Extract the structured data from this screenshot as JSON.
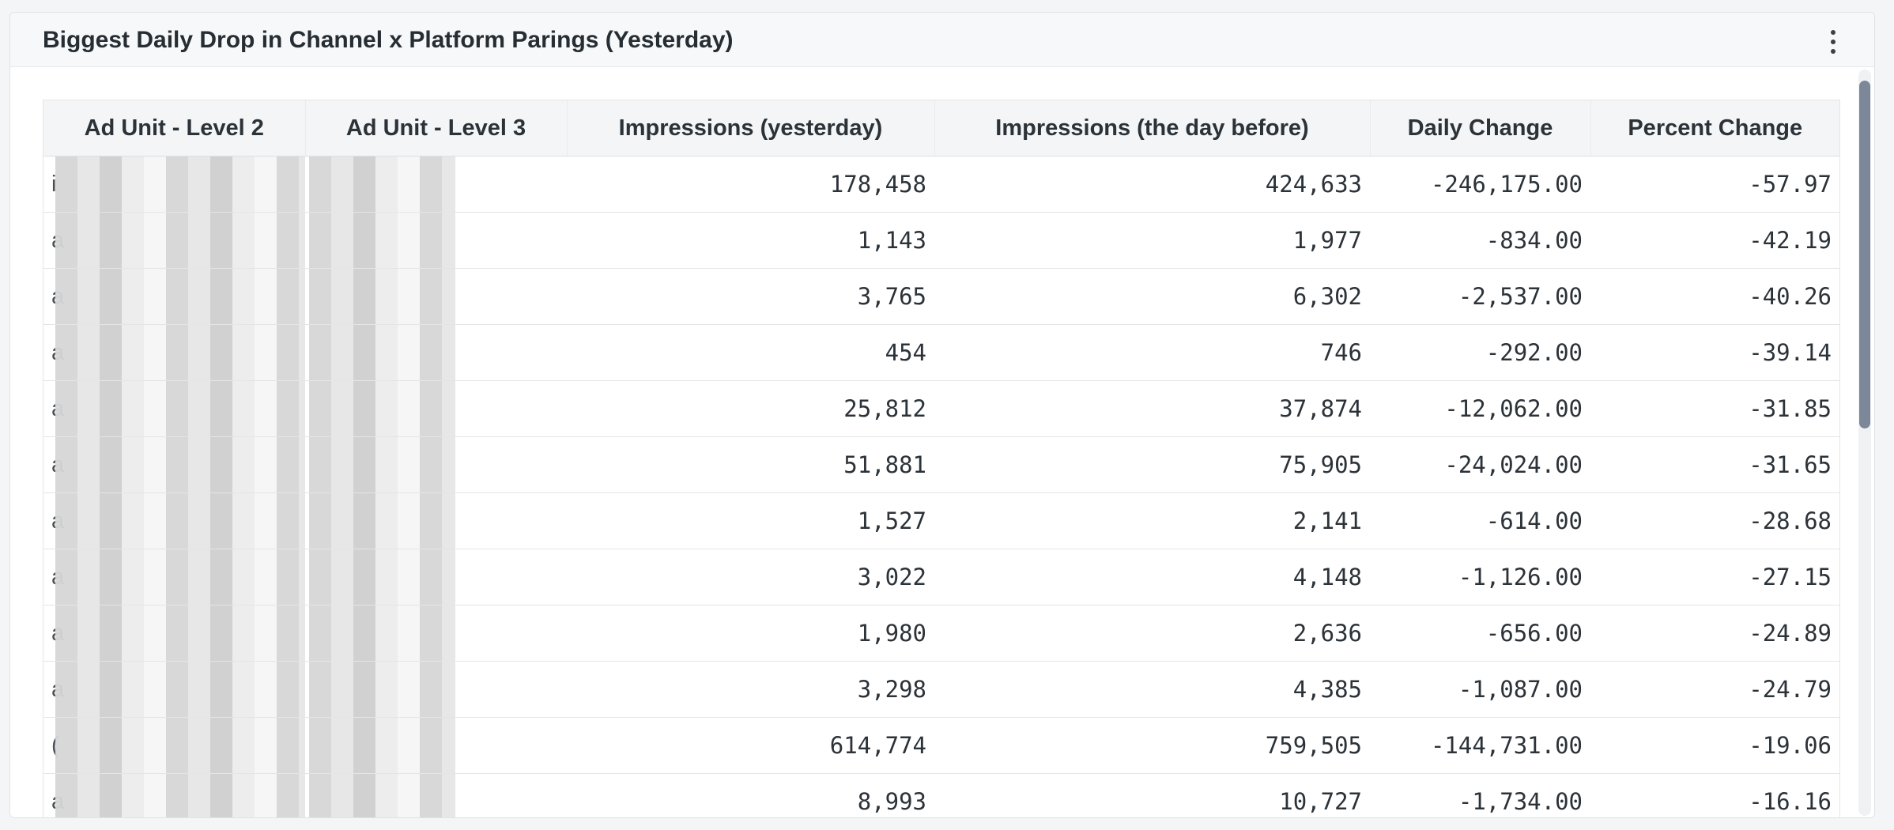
{
  "panel": {
    "title": "Biggest Daily Drop in Channel x Platform Parings (Yesterday)",
    "menu_icon": "kebab-menu-icon"
  },
  "table": {
    "columns": [
      "Ad Unit - Level 2",
      "Ad Unit - Level 3",
      "Impressions (yesterday)",
      "Impressions (the day before)",
      "Daily Change",
      "Percent Change"
    ],
    "rows": [
      {
        "l2": "i",
        "l3": "",
        "imp_y": "178,458",
        "imp_b": "424,633",
        "change": "-246,175.00",
        "pct": "-57.97"
      },
      {
        "l2": "a",
        "l3": "",
        "imp_y": "1,143",
        "imp_b": "1,977",
        "change": "-834.00",
        "pct": "-42.19"
      },
      {
        "l2": "a",
        "l3": "",
        "imp_y": "3,765",
        "imp_b": "6,302",
        "change": "-2,537.00",
        "pct": "-40.26"
      },
      {
        "l2": "a",
        "l3": "",
        "imp_y": "454",
        "imp_b": "746",
        "change": "-292.00",
        "pct": "-39.14"
      },
      {
        "l2": "a",
        "l3": "",
        "imp_y": "25,812",
        "imp_b": "37,874",
        "change": "-12,062.00",
        "pct": "-31.85"
      },
      {
        "l2": "a",
        "l3": "",
        "imp_y": "51,881",
        "imp_b": "75,905",
        "change": "-24,024.00",
        "pct": "-31.65"
      },
      {
        "l2": "a",
        "l3": "",
        "imp_y": "1,527",
        "imp_b": "2,141",
        "change": "-614.00",
        "pct": "-28.68"
      },
      {
        "l2": "a",
        "l3": "",
        "imp_y": "3,022",
        "imp_b": "4,148",
        "change": "-1,126.00",
        "pct": "-27.15"
      },
      {
        "l2": "a",
        "l3": "",
        "imp_y": "1,980",
        "imp_b": "2,636",
        "change": "-656.00",
        "pct": "-24.89"
      },
      {
        "l2": "a",
        "l3": "",
        "imp_y": "3,298",
        "imp_b": "4,385",
        "change": "-1,087.00",
        "pct": "-24.79"
      },
      {
        "l2": "(",
        "l3": "",
        "imp_y": "614,774",
        "imp_b": "759,505",
        "change": "-144,731.00",
        "pct": "-19.06"
      },
      {
        "l2": "a",
        "l3": "",
        "imp_y": "8,993",
        "imp_b": "10,727",
        "change": "-1,734.00",
        "pct": "-16.16"
      }
    ]
  },
  "colors": {
    "scroll_thumb": "#7c8799",
    "header_bg": "#f4f5f6"
  }
}
